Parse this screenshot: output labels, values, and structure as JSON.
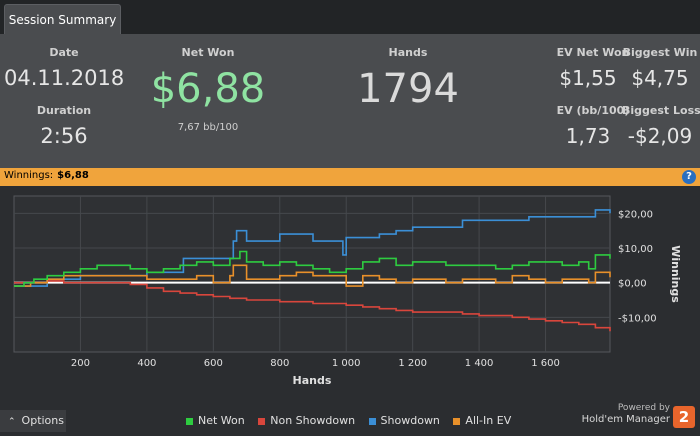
{
  "tab": {
    "label": "Session Summary"
  },
  "summary": {
    "date_label": "Date",
    "date": "04.11.2018",
    "duration_label": "Duration",
    "duration": "2:56",
    "net_won_label": "Net Won",
    "net_won": "$6,88",
    "bb100": "7,67 bb/100",
    "hands_label": "Hands",
    "hands": "1794",
    "ev_net_won_label": "EV Net Won",
    "ev_net_won": "$1,55",
    "biggest_win_label": "Biggest Win",
    "biggest_win": "$4,75",
    "ev_bb100_label": "EV (bb/100)",
    "ev_bb100": "1,73",
    "biggest_loss_label": "Biggest Loss",
    "biggest_loss": "-$2,09"
  },
  "winnings_bar": {
    "label": "Winnings:",
    "value": "$6,88"
  },
  "options": {
    "label": "Options"
  },
  "branding": {
    "powered": "Powered by",
    "product": "Hold'em Manager",
    "logo_text": "2"
  },
  "colors": {
    "net_won": "#2ecc40",
    "non_showdown": "#d9463c",
    "showdown": "#3b8fd6",
    "allin_ev": "#e8902a"
  },
  "chart_data": {
    "type": "line",
    "title": "",
    "xlabel": "Hands",
    "ylabel": "Winnings",
    "xlim": [
      0,
      1794
    ],
    "ylim": [
      -20,
      25
    ],
    "x_ticks": [
      200,
      400,
      600,
      800,
      1000,
      1200,
      1400,
      1600
    ],
    "x_tick_labels": [
      "200",
      "400",
      "600",
      "800",
      "1 000",
      "1 200",
      "1 400",
      "1 600"
    ],
    "y_ticks": [
      20,
      10,
      0,
      -10
    ],
    "y_tick_labels": [
      "$20,00",
      "$10,00",
      "$0,00",
      "-$10,00"
    ],
    "legend": [
      "Net Won",
      "Non Showdown",
      "Showdown",
      "All-In EV"
    ],
    "series": [
      {
        "name": "Net Won",
        "color": "#2ecc40",
        "x": [
          0,
          30,
          60,
          100,
          150,
          200,
          250,
          300,
          350,
          400,
          450,
          500,
          550,
          600,
          650,
          680,
          700,
          750,
          800,
          850,
          900,
          950,
          1000,
          1050,
          1100,
          1150,
          1200,
          1250,
          1300,
          1350,
          1400,
          1450,
          1500,
          1550,
          1600,
          1650,
          1700,
          1730,
          1750,
          1794
        ],
        "y": [
          -1,
          0,
          1,
          2,
          3,
          4,
          5,
          5,
          4,
          3,
          4,
          5,
          6,
          5,
          7,
          9,
          6,
          5,
          6,
          5,
          4,
          3,
          4,
          6,
          7,
          5,
          6,
          6,
          5,
          5,
          5,
          4,
          5,
          6,
          6,
          5,
          6,
          4,
          8,
          6.88
        ]
      },
      {
        "name": "Non Showdown",
        "color": "#d9463c",
        "x": [
          0,
          50,
          100,
          150,
          200,
          250,
          300,
          350,
          400,
          450,
          500,
          550,
          600,
          650,
          700,
          750,
          800,
          850,
          900,
          950,
          1000,
          1050,
          1100,
          1150,
          1200,
          1250,
          1300,
          1350,
          1400,
          1450,
          1500,
          1550,
          1600,
          1650,
          1700,
          1750,
          1794
        ],
        "y": [
          0,
          0,
          0.5,
          0,
          0,
          0,
          0,
          -0.5,
          -1.5,
          -2.5,
          -3,
          -3.5,
          -4,
          -4.5,
          -5,
          -5,
          -5.5,
          -5.5,
          -6,
          -6,
          -6.5,
          -7,
          -7.5,
          -8,
          -8.5,
          -8.5,
          -8.5,
          -9,
          -9.5,
          -9.5,
          -10,
          -10.5,
          -11,
          -11.5,
          -12,
          -13,
          -14
        ]
      },
      {
        "name": "Showdown",
        "color": "#3b8fd6",
        "x": [
          0,
          100,
          200,
          300,
          400,
          500,
          510,
          560,
          660,
          670,
          700,
          800,
          850,
          900,
          950,
          990,
          1000,
          1050,
          1100,
          1150,
          1200,
          1250,
          1300,
          1350,
          1400,
          1450,
          1500,
          1550,
          1600,
          1650,
          1700,
          1740,
          1750,
          1794
        ],
        "y": [
          -1,
          1,
          2,
          2,
          3,
          3,
          7,
          7,
          12,
          15,
          12,
          14,
          14,
          12,
          12,
          8,
          13,
          13,
          14,
          15,
          16,
          16,
          16,
          18,
          18,
          18,
          18,
          19,
          19,
          19,
          19,
          19,
          21,
          20
        ]
      },
      {
        "name": "All-In EV",
        "color": "#e8902a",
        "x": [
          0,
          50,
          100,
          150,
          200,
          300,
          400,
          500,
          550,
          600,
          650,
          660,
          700,
          800,
          850,
          900,
          950,
          1000,
          1050,
          1100,
          1150,
          1200,
          1250,
          1300,
          1350,
          1400,
          1450,
          1500,
          1550,
          1600,
          1650,
          1700,
          1730,
          1750,
          1794
        ],
        "y": [
          -1,
          0,
          1,
          2,
          2,
          2,
          1,
          1,
          2,
          0,
          2,
          5,
          1,
          2,
          3,
          2,
          2,
          -1,
          2,
          1,
          0,
          1,
          1,
          0,
          1,
          1,
          0,
          2,
          1,
          0,
          1,
          1,
          0,
          3,
          1.55
        ]
      }
    ]
  }
}
